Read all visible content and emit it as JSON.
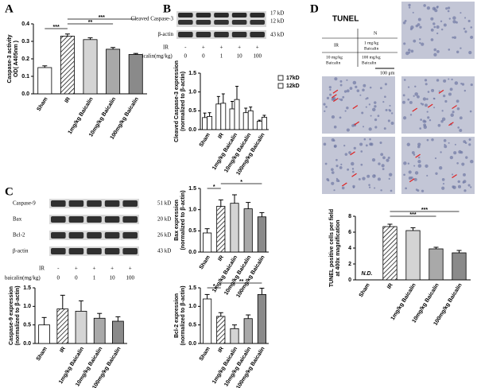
{
  "panel_labels": [
    "A",
    "B",
    "C",
    "D"
  ],
  "blots": [
    {
      "rows": [
        "Cleaved Caspase-3",
        "β-actin"
      ],
      "kd": [
        "17 kD",
        "12 kD",
        "43 kD"
      ],
      "ir_label": "IR",
      "ir": [
        "-",
        "+",
        "+",
        "+",
        "+"
      ],
      "dose_label": "baicalin(mg/kg)",
      "doses": [
        "0",
        "0",
        "1",
        "10",
        "100"
      ]
    },
    {
      "rows": [
        "Caspase-9",
        "Bax",
        "Bcl-2",
        "β-actin"
      ],
      "kd": [
        "51 kD",
        "20 kD",
        "26 kD",
        "43 kD"
      ],
      "ir_label": "IR",
      "ir": [
        "-",
        "+",
        "+",
        "+",
        "+"
      ],
      "dose_label": "baicalin(mg/kg)",
      "doses": [
        "0",
        "0",
        "1",
        "10",
        "100"
      ]
    }
  ],
  "tunel": {
    "title": "TUNEL",
    "n": "N",
    "ir": "IR",
    "low": [
      "1 mg/kg",
      "Baicalin"
    ],
    "mid": [
      "10 mg/kg",
      "Baicalin"
    ],
    "high": [
      "100 mg/kg",
      "Baicalin"
    ],
    "scale": "100 μm"
  },
  "chart_data": [
    {
      "type": "bar",
      "ylabel": [
        "Caspase-3 activity",
        "OD( A405nm )"
      ],
      "categories": [
        "Sham",
        "IR",
        "1mg/kg Baicalin",
        "10mg/kg Baicalin",
        "100mg/kg Baicalin"
      ],
      "values": [
        0.15,
        0.33,
        0.31,
        0.255,
        0.225
      ],
      "errors": [
        0.01,
        0.012,
        0.01,
        0.01,
        0.006
      ],
      "colors": [
        "#ffffff",
        "hatch",
        "#d4d4d4",
        "#a9a9a9",
        "#8a8a8a"
      ],
      "ylim": [
        0,
        0.4
      ],
      "yticks": [
        {
          "value": 0,
          "label": "0.0"
        },
        {
          "value": 0.1,
          "label": "0.1"
        },
        {
          "value": 0.2,
          "label": "0.2"
        },
        {
          "value": 0.3,
          "label": "0.3"
        },
        {
          "value": 0.4,
          "label": "0.4"
        }
      ],
      "annotations": [
        {
          "text": "***",
          "from": "IR",
          "to": "100mg/kg Baicalin"
        },
        {
          "text": "**",
          "from": "IR",
          "to": "10mg/kg Baicalin"
        },
        {
          "text": "***",
          "from": "Sham",
          "to": "IR"
        }
      ]
    },
    {
      "type": "grouped-bar",
      "ylabel": [
        "Cleaved Caspase-3 expression",
        "(normalized to β-actin)"
      ],
      "categories": [
        "Sham",
        "IR",
        "1mg/kg Baicalin",
        "10mg/kg Baicalin",
        "100mg/kg Baicalin"
      ],
      "series": [
        {
          "name": "17kD",
          "color": "#ffffff",
          "values": [
            0.32,
            0.68,
            0.55,
            0.45,
            0.22
          ],
          "errors": [
            0.12,
            0.2,
            0.2,
            0.12,
            0.03
          ]
        },
        {
          "name": "12kD",
          "color": "#ffffff",
          "values": [
            0.35,
            0.7,
            0.8,
            0.5,
            0.33
          ],
          "errors": [
            0.1,
            0.25,
            0.35,
            0.1,
            0.05
          ]
        }
      ],
      "legend": "right",
      "ylim": [
        0,
        1.5
      ],
      "yticks": [
        {
          "value": 0,
          "label": "0.0"
        },
        {
          "value": 0.5,
          "label": "0.5"
        },
        {
          "value": 1,
          "label": "1.0"
        },
        {
          "value": 1.5,
          "label": "1.5"
        }
      ]
    },
    {
      "type": "bar",
      "ylabel": [
        "Bax expression",
        "(normalized to β-actin)"
      ],
      "categories": [
        "Sham",
        "IR",
        "1mg/kg Baicalin",
        "10mg/kg Baicalin",
        "100mg/kg Baicalin"
      ],
      "values": [
        0.45,
        1.08,
        1.15,
        1.02,
        0.83
      ],
      "errors": [
        0.1,
        0.15,
        0.2,
        0.15,
        0.1
      ],
      "colors": [
        "#ffffff",
        "hatch",
        "#d4d4d4",
        "#a9a9a9",
        "#8a8a8a"
      ],
      "ylim": [
        0,
        1.5
      ],
      "yticks": [
        {
          "value": 0,
          "label": "0.0"
        },
        {
          "value": 0.5,
          "label": "0.5"
        },
        {
          "value": 1,
          "label": "1.0"
        },
        {
          "value": 1.5,
          "label": "1.5"
        }
      ],
      "annotations": [
        {
          "text": "*",
          "from": "IR",
          "to": "100mg/kg Baicalin"
        },
        {
          "text": "*",
          "from": "Sham",
          "to": "IR"
        }
      ]
    },
    {
      "type": "bar",
      "ylabel": [
        "Caspase-9 expression",
        "(normalized to β-actin)"
      ],
      "categories": [
        "Sham",
        "IR",
        "1mg/kg Baicalin",
        "10mg/kg Baicalin",
        "100mg/kg Baicalin"
      ],
      "values": [
        0.5,
        0.93,
        0.87,
        0.68,
        0.6
      ],
      "errors": [
        0.2,
        0.37,
        0.28,
        0.13,
        0.12
      ],
      "colors": [
        "#ffffff",
        "hatch",
        "#d4d4d4",
        "#a9a9a9",
        "#8a8a8a"
      ],
      "ylim": [
        0,
        1.5
      ],
      "yticks": [
        {
          "value": 0,
          "label": "0.0"
        },
        {
          "value": 0.5,
          "label": "0.5"
        },
        {
          "value": 1,
          "label": "1.0"
        },
        {
          "value": 1.5,
          "label": "1.5"
        }
      ]
    },
    {
      "type": "bar",
      "ylabel": [
        "Bcl-2 expression",
        "(normalized to β-actin)"
      ],
      "categories": [
        "Sham",
        "IR",
        "1mg/kg Baicalin",
        "10mg/kg Baicalin",
        "100mg/kg Baicalin"
      ],
      "values": [
        1.2,
        0.73,
        0.4,
        0.67,
        1.32
      ],
      "errors": [
        0.12,
        0.1,
        0.1,
        0.1,
        0.17
      ],
      "colors": [
        "#ffffff",
        "hatch",
        "#d4d4d4",
        "#a9a9a9",
        "#8a8a8a"
      ],
      "ylim": [
        0,
        1.5
      ],
      "yticks": [
        {
          "value": 0,
          "label": "0.0"
        },
        {
          "value": 0.5,
          "label": "0.5"
        },
        {
          "value": 1,
          "label": "1.0"
        },
        {
          "value": 1.5,
          "label": "1.5"
        }
      ],
      "annotations": [
        {
          "text": "**",
          "from": "IR",
          "to": "100mg/kg Baicalin"
        },
        {
          "text": "*",
          "from": "Sham",
          "to": "IR"
        }
      ]
    },
    {
      "type": "bar",
      "ylabel": [
        "TUNEL positive cells per field",
        "at 400x magnification"
      ],
      "categories": [
        "Sham",
        "IR",
        "1mg/kg Baicalin",
        "10mg/kg Baicalin",
        "100mg/kg Baicalin"
      ],
      "values": [
        null,
        6.7,
        6.2,
        3.9,
        3.4
      ],
      "errors": [
        null,
        0.3,
        0.35,
        0.2,
        0.3
      ],
      "na_label": "N.D.",
      "colors": [
        "#ffffff",
        "hatch",
        "#d4d4d4",
        "#a9a9a9",
        "#8a8a8a"
      ],
      "ylim": [
        0,
        8
      ],
      "yticks": [
        0,
        2,
        4,
        6,
        8
      ],
      "annotations": [
        {
          "text": "***",
          "from": "IR",
          "to": "100mg/kg Baicalin"
        },
        {
          "text": "***",
          "from": "IR",
          "to": "10mg/kg Baicalin"
        }
      ]
    }
  ]
}
